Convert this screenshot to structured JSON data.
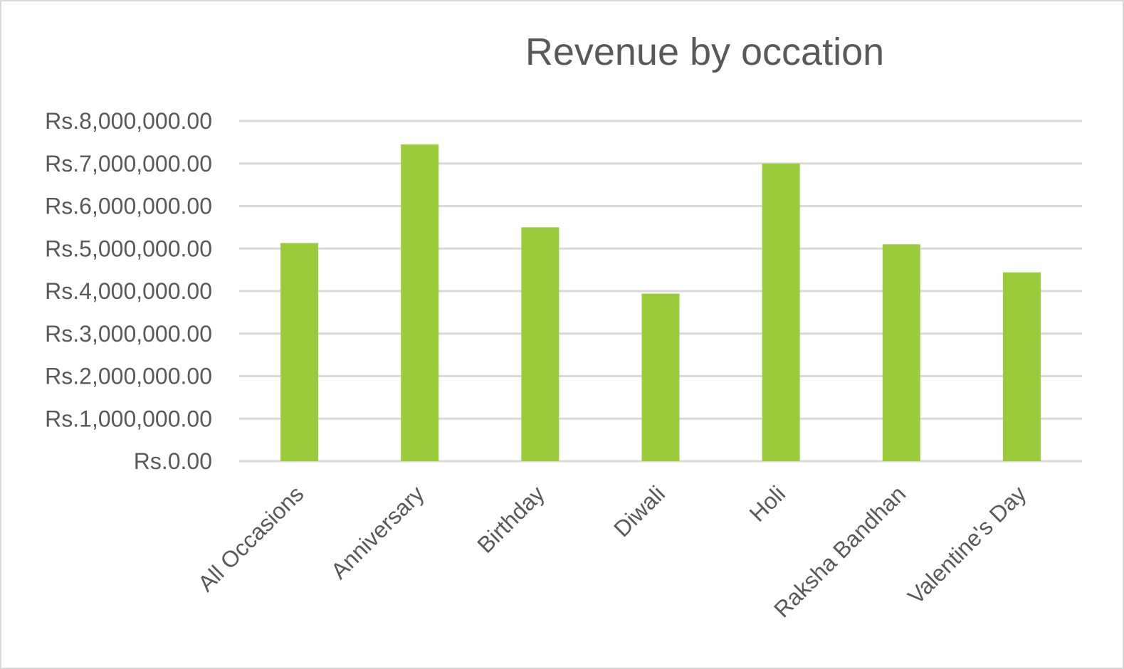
{
  "chart_data": {
    "type": "bar",
    "title": "Revenue by occation",
    "categories": [
      "All Occasions",
      "Anniversary",
      "Birthday",
      "Diwali",
      "Holi",
      "Raksha Bandhan",
      "Valentine's Day"
    ],
    "values": [
      5130000,
      7450000,
      5500000,
      3940000,
      7000000,
      5100000,
      4440000
    ],
    "y_ticks": [
      0,
      1000000,
      2000000,
      3000000,
      4000000,
      5000000,
      6000000,
      7000000,
      8000000
    ],
    "y_tick_labels": [
      "Rs.0.00",
      "Rs.1,000,000.00",
      "Rs.2,000,000.00",
      "Rs.3,000,000.00",
      "Rs.4,000,000.00",
      "Rs.5,000,000.00",
      "Rs.6,000,000.00",
      "Rs.7,000,000.00",
      "Rs.8,000,000.00"
    ],
    "ylim": [
      0,
      8000000
    ],
    "grid": true,
    "legend": "none",
    "bar_color": "#9acb3b",
    "grid_color": "#d9d9d9",
    "text_color": "#595959"
  }
}
